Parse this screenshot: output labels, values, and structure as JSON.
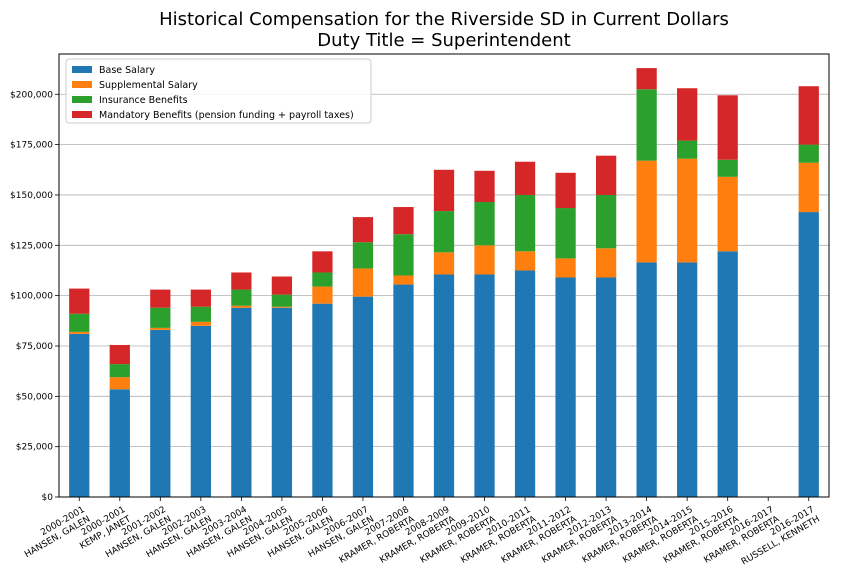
{
  "chart_data": {
    "type": "bar",
    "stacked": true,
    "title": "Historical Compensation for the Riverside SD in Current Dollars",
    "subtitle": "Duty Title = Superintendent",
    "xlabel": "",
    "ylabel": "",
    "ylim": [
      0,
      220000
    ],
    "yticks": [
      0,
      25000,
      50000,
      75000,
      100000,
      125000,
      150000,
      175000,
      200000
    ],
    "ytick_labels": [
      "$0",
      "$25,000",
      "$50,000",
      "$75,000",
      "$100,000",
      "$125,000",
      "$150,000",
      "$175,000",
      "$200,000"
    ],
    "grid": "horizontal",
    "legend_position": "top-left",
    "categories": [
      [
        "2000-2001",
        "HANSEN, GALEN"
      ],
      [
        "2000-2001",
        "KEMP, JANET"
      ],
      [
        "2001-2002",
        "HANSEN, GALEN"
      ],
      [
        "2002-2003",
        "HANSEN, GALEN"
      ],
      [
        "2003-2004",
        "HANSEN, GALEN"
      ],
      [
        "2004-2005",
        "HANSEN, GALEN"
      ],
      [
        "2005-2006",
        "HANSEN, GALEN"
      ],
      [
        "2006-2007",
        "HANSEN, GALEN"
      ],
      [
        "2007-2008",
        "KRAMER, ROBERTA"
      ],
      [
        "2008-2009",
        "KRAMER, ROBERTA"
      ],
      [
        "2009-2010",
        "KRAMER, ROBERTA"
      ],
      [
        "2010-2011",
        "KRAMER, ROBERTA"
      ],
      [
        "2011-2012",
        "KRAMER, ROBERTA"
      ],
      [
        "2012-2013",
        "KRAMER, ROBERTA"
      ],
      [
        "2013-2014",
        "KRAMER, ROBERTA"
      ],
      [
        "2014-2015",
        "KRAMER, ROBERTA"
      ],
      [
        "2015-2016",
        "KRAMER, ROBERTA"
      ],
      [
        "2016-2017",
        "KRAMER, ROBERTA"
      ],
      [
        "2016-2017",
        "RUSSELL, KENNETH"
      ]
    ],
    "series": [
      {
        "name": "Base Salary",
        "color": "#1f77b4",
        "values": [
          81000,
          53500,
          83000,
          85000,
          94000,
          94000,
          96000,
          99500,
          105500,
          110500,
          110500,
          112500,
          109000,
          109000,
          116500,
          116500,
          122000,
          0,
          141500
        ]
      },
      {
        "name": "Supplemental Salary",
        "color": "#ff7f0e",
        "values": [
          1000,
          6000,
          1000,
          2000,
          1000,
          500,
          8500,
          14000,
          4500,
          11000,
          14500,
          9500,
          9500,
          14500,
          50500,
          51500,
          37000,
          0,
          24500
        ]
      },
      {
        "name": "Insurance Benefits",
        "color": "#2ca02c",
        "values": [
          9000,
          6500,
          10000,
          7500,
          8000,
          6000,
          7000,
          13000,
          20500,
          20500,
          21500,
          28000,
          25000,
          26500,
          35500,
          9000,
          8500,
          0,
          9000
        ]
      },
      {
        "name": "Mandatory Benefits (pension funding + payroll taxes)",
        "color": "#d62728",
        "values": [
          12500,
          9500,
          9000,
          8500,
          8500,
          9000,
          10500,
          12500,
          13500,
          20500,
          15500,
          16500,
          17500,
          19500,
          10500,
          26000,
          32000,
          0,
          29000
        ]
      }
    ]
  }
}
